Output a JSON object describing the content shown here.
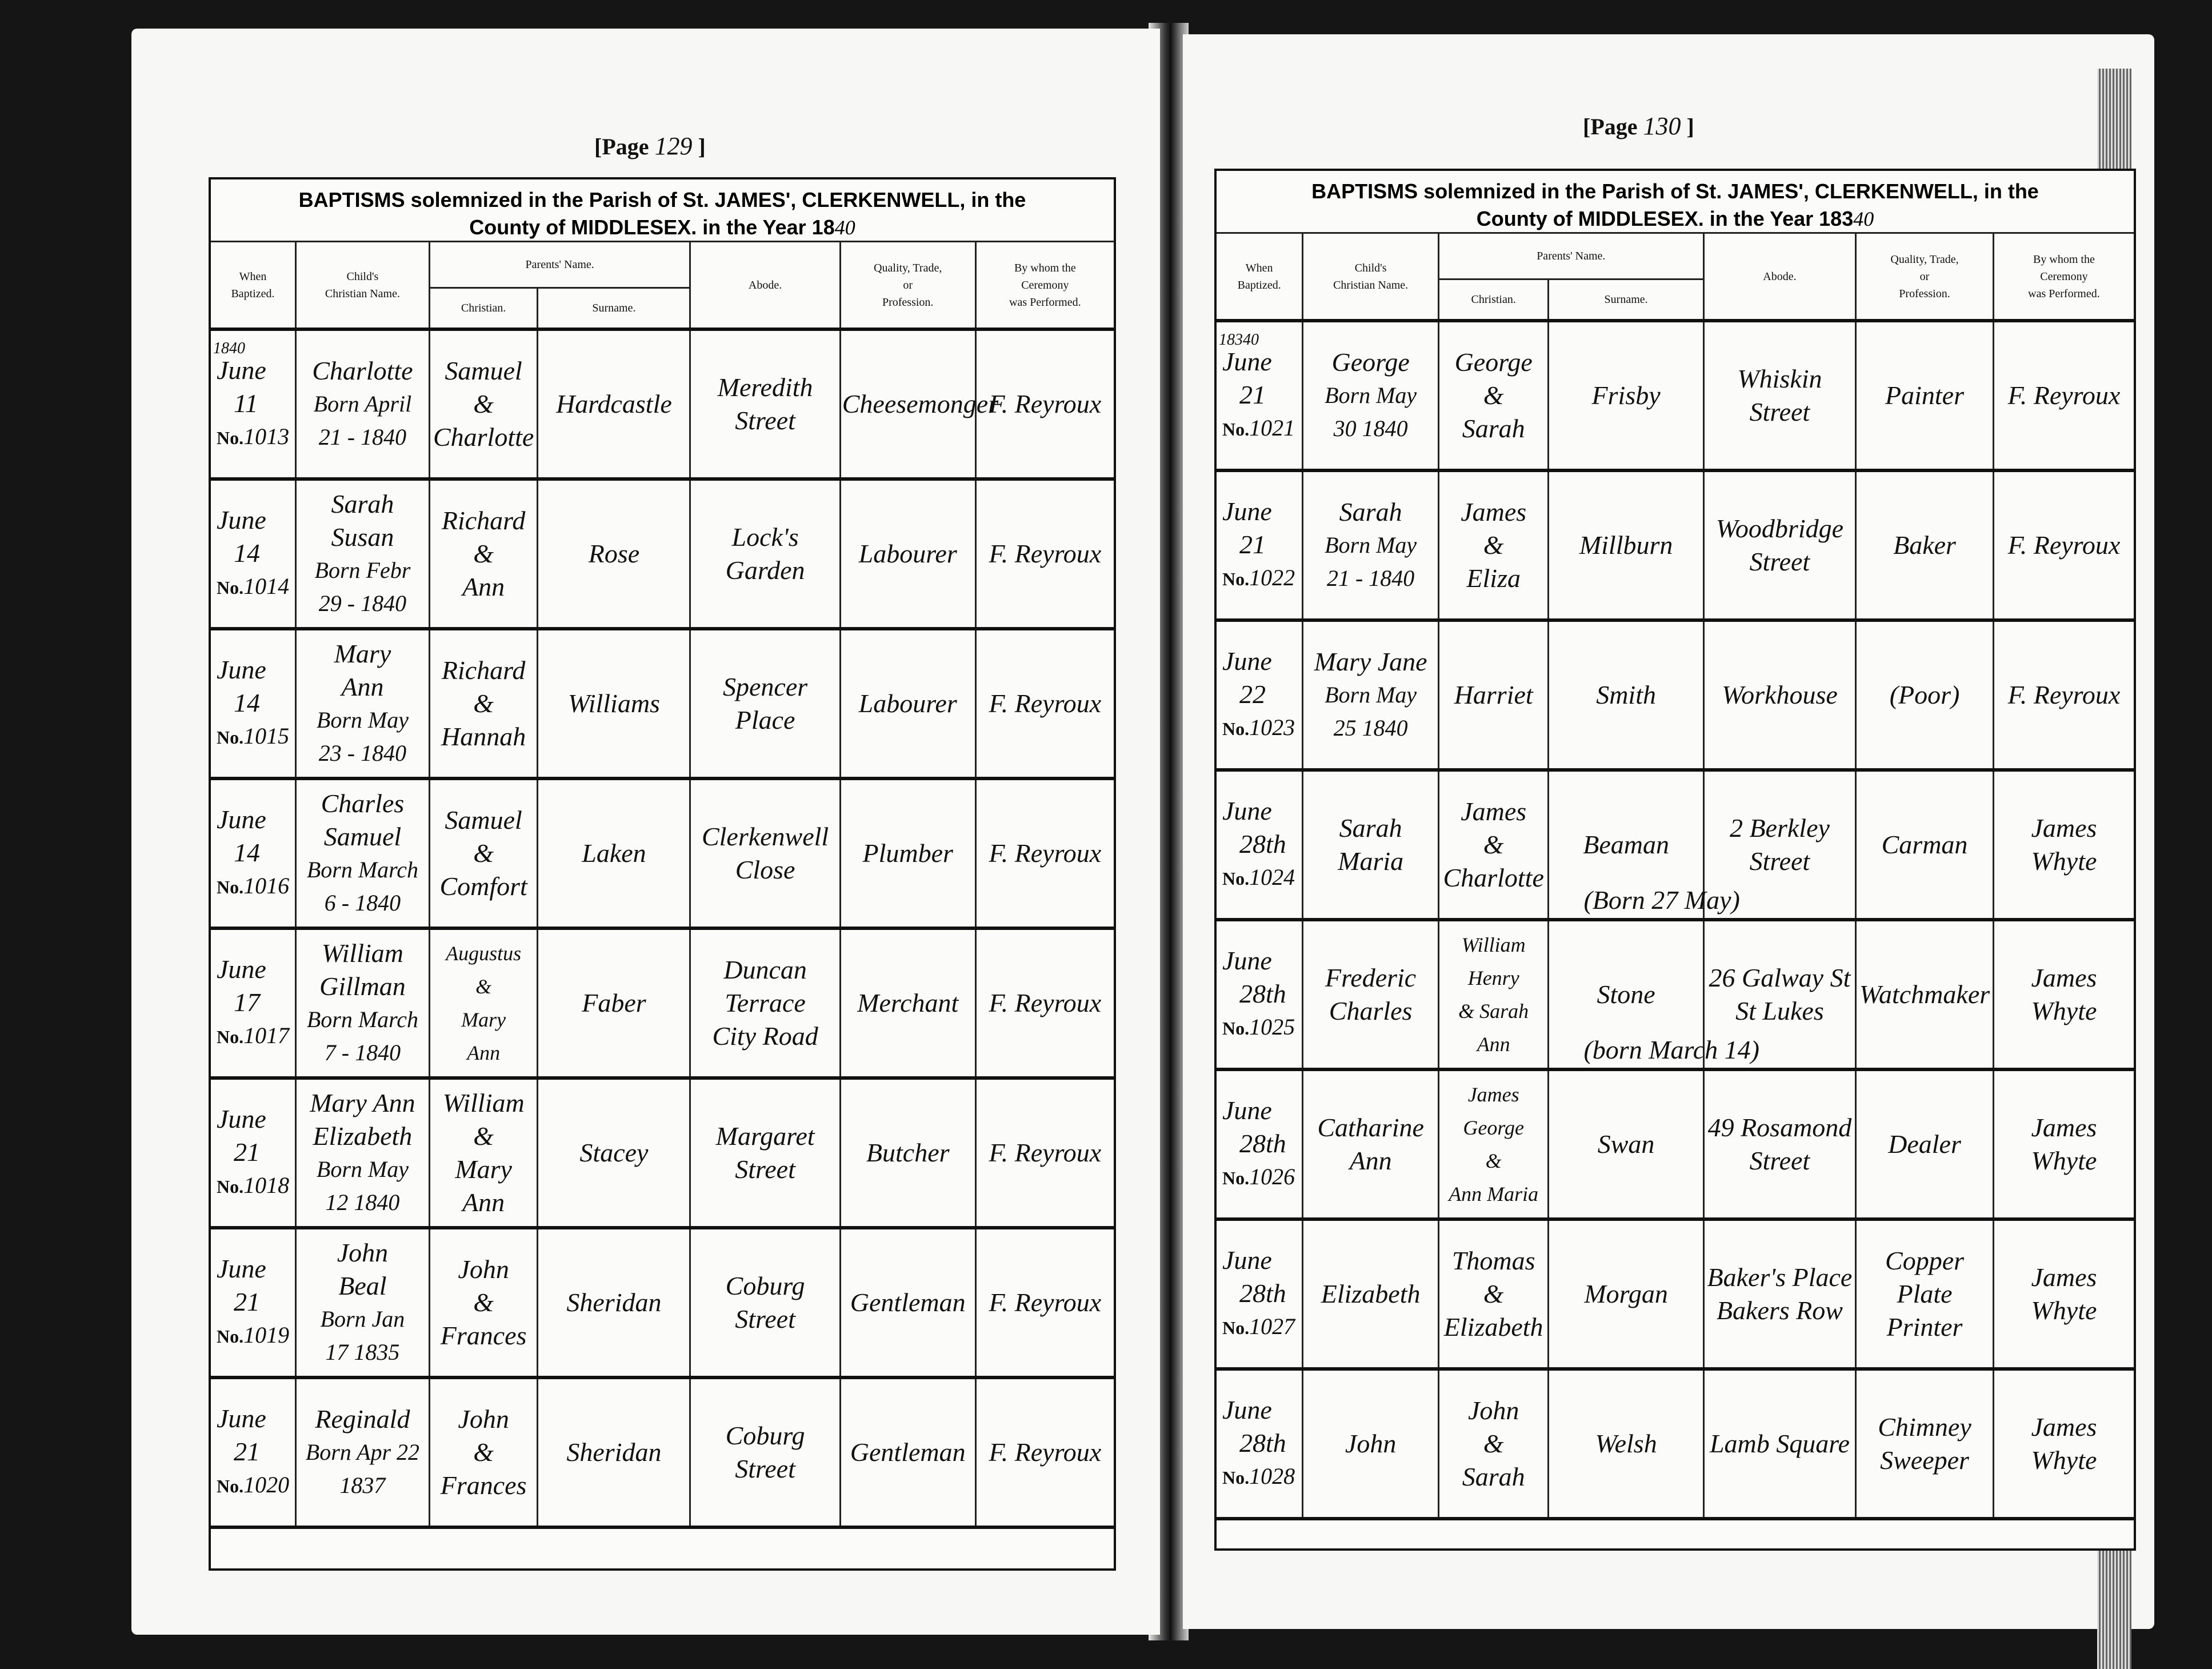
{
  "left_page": {
    "page_label": "[Page",
    "page_number": "129",
    "page_label_end": "]",
    "title_line1": "BAPTISMS solemnized in the Parish of St. JAMES', CLERKENWELL, in the",
    "title_line2": "County of MIDDLESEX. in the Year 18",
    "year_hand": "40",
    "year_row": "18",
    "year_row_hand": "40",
    "entries": [
      {
        "month": "June",
        "day": "11",
        "no": "1013",
        "child": [
          "Charlotte"
        ],
        "born": [
          "Born April",
          "21 - 1840"
        ],
        "christian": [
          "Samuel",
          "&",
          "Charlotte"
        ],
        "surname": "Hardcastle",
        "abode": [
          "Meredith",
          "Street"
        ],
        "quality": [
          "Cheesemonger"
        ],
        "minister": "F. Reyroux"
      },
      {
        "month": "June",
        "day": "14",
        "no": "1014",
        "child": [
          "Sarah",
          "Susan"
        ],
        "born": [
          "Born Febr",
          "29 - 1840"
        ],
        "christian": [
          "Richard",
          "&",
          "Ann"
        ],
        "surname": "Rose",
        "abode": [
          "Lock's",
          "Garden"
        ],
        "quality": [
          "Labourer"
        ],
        "minister": "F. Reyroux"
      },
      {
        "month": "June",
        "day": "14",
        "no": "1015",
        "child": [
          "Mary",
          "Ann"
        ],
        "born": [
          "Born May",
          "23 - 1840"
        ],
        "christian": [
          "Richard",
          "&",
          "Hannah"
        ],
        "surname": "Williams",
        "abode": [
          "Spencer",
          "Place"
        ],
        "quality": [
          "Labourer"
        ],
        "minister": "F. Reyroux"
      },
      {
        "month": "June",
        "day": "14",
        "no": "1016",
        "child": [
          "Charles",
          "Samuel"
        ],
        "born": [
          "Born March",
          "6 - 1840"
        ],
        "christian": [
          "Samuel",
          "&",
          "Comfort"
        ],
        "surname": "Laken",
        "abode": [
          "Clerkenwell",
          "Close"
        ],
        "quality": [
          "Plumber"
        ],
        "minister": "F. Reyroux"
      },
      {
        "month": "June",
        "day": "17",
        "no": "1017",
        "child": [
          "William",
          "Gillman"
        ],
        "born": [
          "Born March",
          "7 - 1840"
        ],
        "christian": [
          "Augustus",
          "&",
          "Mary",
          "Ann"
        ],
        "surname": "Faber",
        "abode": [
          "Duncan Terrace",
          "City Road"
        ],
        "quality": [
          "Merchant"
        ],
        "minister": "F. Reyroux"
      },
      {
        "month": "June",
        "day": "21",
        "no": "1018",
        "child": [
          "Mary Ann",
          "Elizabeth"
        ],
        "born": [
          "Born May",
          "12 1840"
        ],
        "christian": [
          "William",
          "&",
          "Mary Ann"
        ],
        "surname": "Stacey",
        "abode": [
          "Margaret",
          "Street"
        ],
        "quality": [
          "Butcher"
        ],
        "minister": "F. Reyroux"
      },
      {
        "month": "June",
        "day": "21",
        "no": "1019",
        "child": [
          "John",
          "Beal"
        ],
        "born": [
          "Born Jan",
          "17 1835"
        ],
        "christian": [
          "John",
          "&",
          "Frances"
        ],
        "surname": "Sheridan",
        "abode": [
          "Coburg",
          "Street"
        ],
        "quality": [
          "Gentleman"
        ],
        "minister": "F. Reyroux"
      },
      {
        "month": "June",
        "day": "21",
        "no": "1020",
        "child": [
          "Reginald"
        ],
        "born": [
          "Born Apr 22",
          "1837"
        ],
        "christian": [
          "John",
          "&",
          "Frances"
        ],
        "surname": "Sheridan",
        "abode": [
          "Coburg",
          "Street"
        ],
        "quality": [
          "Gentleman"
        ],
        "minister": "F. Reyroux"
      }
    ]
  },
  "right_page": {
    "page_label": "[Page",
    "page_number": "130",
    "page_label_end": "]",
    "title_line1": "BAPTISMS solemnized in the Parish of St. JAMES', CLERKENWELL, in the",
    "title_line2": "County of MIDDLESEX. in the Year 183",
    "year_hand": "40",
    "year_row": "183",
    "year_row_hand": "40",
    "entries": [
      {
        "month": "June",
        "day": "21",
        "no": "1021",
        "child": [
          "George"
        ],
        "born": [
          "Born May",
          "30 1840"
        ],
        "christian": [
          "George",
          "&",
          "Sarah"
        ],
        "surname": "Frisby",
        "abode": [
          "Whiskin",
          "Street"
        ],
        "quality": [
          "Painter"
        ],
        "minister": "F. Reyroux"
      },
      {
        "month": "June",
        "day": "21",
        "no": "1022",
        "child": [
          "Sarah"
        ],
        "born": [
          "Born May",
          "21 - 1840"
        ],
        "christian": [
          "James",
          "&",
          "Eliza"
        ],
        "surname": "Millburn",
        "abode": [
          "Woodbridge",
          "Street"
        ],
        "quality": [
          "Baker"
        ],
        "minister": "F. Reyroux"
      },
      {
        "month": "June",
        "day": "22",
        "no": "1023",
        "child": [
          "Mary Jane"
        ],
        "born": [
          "Born May",
          "25 1840"
        ],
        "christian": [
          "Harriet"
        ],
        "surname": "Smith",
        "abode": [
          "Workhouse"
        ],
        "quality": [
          "(Poor)"
        ],
        "minister": "F. Reyroux"
      },
      {
        "month": "June",
        "day": "28th",
        "no": "1024",
        "child": [
          "Sarah",
          "Maria"
        ],
        "born": [],
        "christian": [
          "James",
          "&",
          "Charlotte"
        ],
        "surname": "Beaman",
        "abode": [
          "2 Berkley",
          "Street"
        ],
        "quality": [
          "Carman"
        ],
        "minister": "James Whyte",
        "note": "(Born 27 May)"
      },
      {
        "month": "June",
        "day": "28th",
        "no": "1025",
        "child": [
          "Frederic",
          "Charles"
        ],
        "born": [],
        "christian": [
          "William",
          "Henry",
          "& Sarah",
          "Ann"
        ],
        "surname": "Stone",
        "abode": [
          "26 Galway St",
          "St Lukes"
        ],
        "quality": [
          "Watchmaker"
        ],
        "minister": "James Whyte",
        "note": "(born March 14)"
      },
      {
        "month": "June",
        "day": "28th",
        "no": "1026",
        "child": [
          "Catharine",
          "Ann"
        ],
        "born": [],
        "christian": [
          "James",
          "George",
          "&",
          "Ann Maria"
        ],
        "surname": "Swan",
        "abode": [
          "49 Rosamond",
          "Street"
        ],
        "quality": [
          "Dealer"
        ],
        "minister": "James Whyte"
      },
      {
        "month": "June",
        "day": "28th",
        "no": "1027",
        "child": [
          "Elizabeth"
        ],
        "born": [],
        "christian": [
          "Thomas",
          "&",
          "Elizabeth"
        ],
        "surname": "Morgan",
        "abode": [
          "Baker's Place",
          "Bakers Row"
        ],
        "quality": [
          "Copper Plate",
          "Printer"
        ],
        "minister": "James Whyte"
      },
      {
        "month": "June",
        "day": "28th",
        "no": "1028",
        "child": [
          "John"
        ],
        "born": [],
        "christian": [
          "John",
          "&",
          "Sarah"
        ],
        "surname": "Welsh",
        "abode": [
          "Lamb Square"
        ],
        "quality": [
          "Chimney",
          "Sweeper"
        ],
        "minister": "James Whyte"
      }
    ]
  },
  "columns": {
    "when": [
      "When",
      "Baptized."
    ],
    "child": [
      "Child's",
      "Christian Name."
    ],
    "parents": "Parents' Name.",
    "christian": "Christian.",
    "surname": "Surname.",
    "abode": "Abode.",
    "quality": [
      "Quality, Trade,",
      "or",
      "Profession."
    ],
    "minister": [
      "By whom the",
      "Ceremony",
      "was Performed."
    ]
  },
  "no_prefix": "No."
}
